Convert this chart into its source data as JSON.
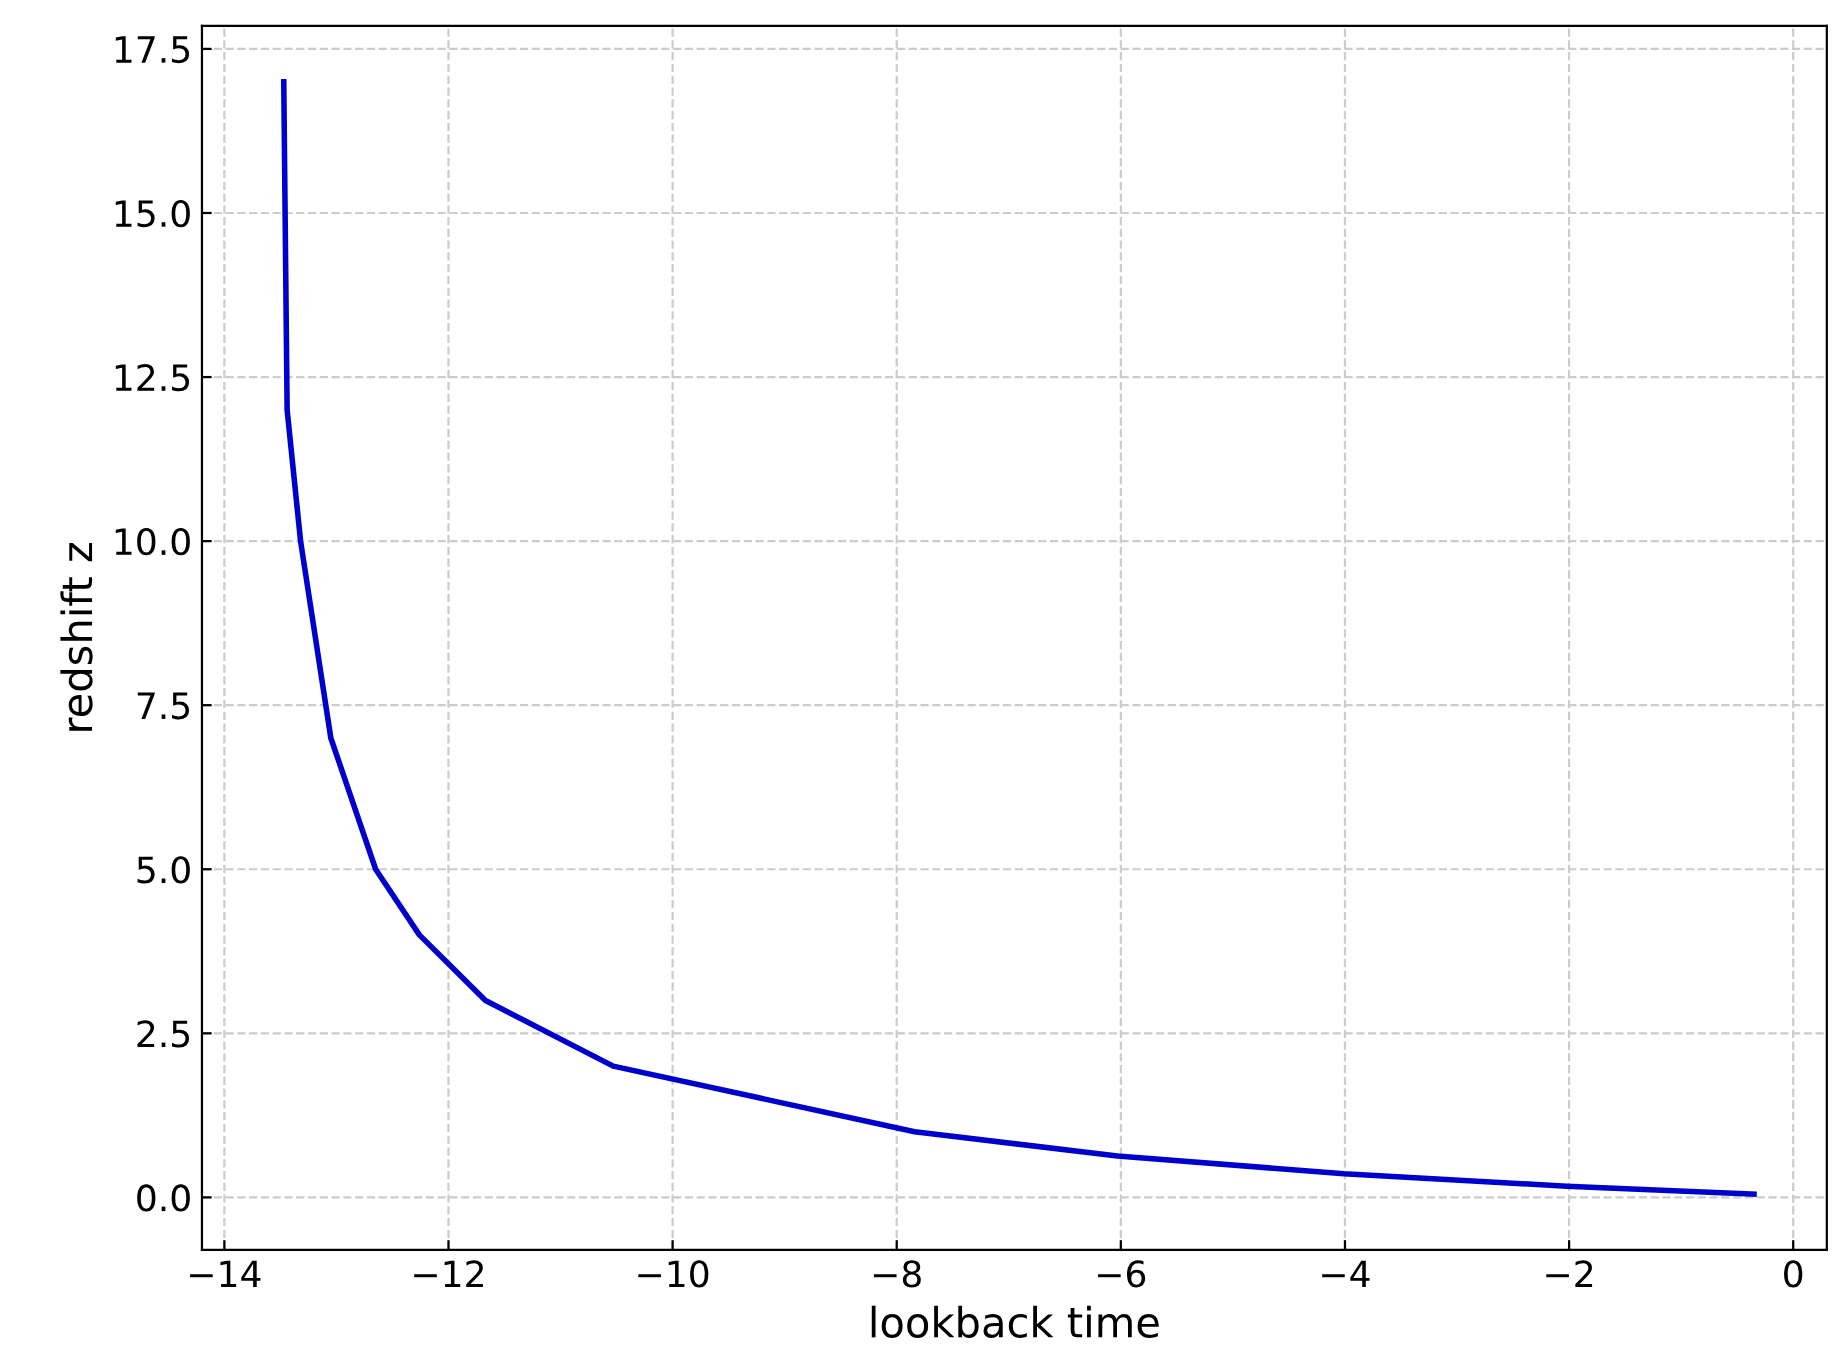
{
  "chart_data": {
    "type": "line",
    "xlabel": "lookback time",
    "ylabel": "redshift z",
    "x": [
      -13.47,
      -13.44,
      -13.32,
      -13.05,
      -12.65,
      -12.26,
      -11.67,
      -10.53,
      -7.84,
      -6.03,
      -4.01,
      -2.02,
      -0.35
    ],
    "series": [
      {
        "color": "#0000cc",
        "values": [
          17,
          12,
          10,
          7,
          5,
          4,
          3,
          2,
          1,
          0.63,
          0.36,
          0.17,
          0.05
        ]
      }
    ],
    "xlim": [
      -14.2,
      0.3
    ],
    "ylim": [
      -0.8,
      17.85
    ],
    "xticks": [
      {
        "value": -14,
        "label": "−14"
      },
      {
        "value": -12,
        "label": "−12"
      },
      {
        "value": -10,
        "label": "−10"
      },
      {
        "value": -8,
        "label": "−8"
      },
      {
        "value": -6,
        "label": "−6"
      },
      {
        "value": -4,
        "label": "−4"
      },
      {
        "value": -2,
        "label": "−2"
      },
      0
    ],
    "yticks": [
      {
        "value": 0,
        "label": "0.0"
      },
      {
        "value": 2.5,
        "label": "2.5"
      },
      {
        "value": 5,
        "label": "5.0"
      },
      {
        "value": 7.5,
        "label": "7.5"
      },
      {
        "value": 10,
        "label": "10.0"
      },
      {
        "value": 12.5,
        "label": "12.5"
      },
      {
        "value": 15,
        "label": "15.0"
      },
      {
        "value": 17.5,
        "label": "17.5"
      }
    ],
    "grid": true,
    "line_style": "solid"
  }
}
